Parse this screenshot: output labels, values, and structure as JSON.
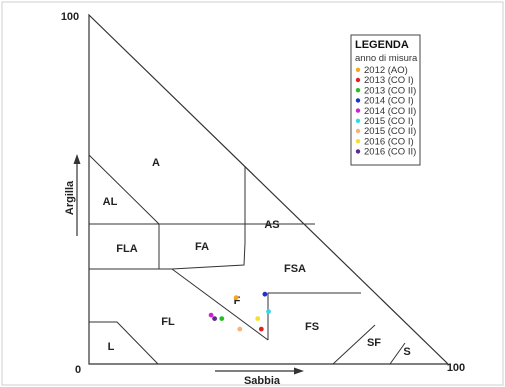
{
  "axes": {
    "y_title": "Argilla",
    "x_title": "Sabbia",
    "origin_label": "0",
    "y_max_label": "100",
    "x_max_label": "100"
  },
  "regions": [
    {
      "id": "A",
      "label": "A"
    },
    {
      "id": "AL",
      "label": "AL"
    },
    {
      "id": "AS",
      "label": "AS"
    },
    {
      "id": "FLA",
      "label": "FLA"
    },
    {
      "id": "FA",
      "label": "FA"
    },
    {
      "id": "FSA",
      "label": "FSA"
    },
    {
      "id": "F",
      "label": "F"
    },
    {
      "id": "FL",
      "label": "FL"
    },
    {
      "id": "FS",
      "label": "FS"
    },
    {
      "id": "L",
      "label": "L"
    },
    {
      "id": "SF",
      "label": "SF"
    },
    {
      "id": "S",
      "label": "S"
    }
  ],
  "legend": {
    "title": "LEGENDA",
    "subtitle": "anno di misura",
    "entries": [
      {
        "label": "2012 (AO)",
        "color": "#f5a623"
      },
      {
        "label": "2013 (CO I)",
        "color": "#e02020"
      },
      {
        "label": "2013 (CO II)",
        "color": "#22c022"
      },
      {
        "label": "2014 (CO I)",
        "color": "#1f2fd0"
      },
      {
        "label": "2014 (CO II)",
        "color": "#d020d0"
      },
      {
        "label": "2015 (CO I)",
        "color": "#30d8e8"
      },
      {
        "label": "2015 (CO II)",
        "color": "#f5b27a"
      },
      {
        "label": "2016 (CO I)",
        "color": "#f5e030"
      },
      {
        "label": "2016 (CO II)",
        "color": "#5a2a8a"
      }
    ]
  },
  "measurements": [
    {
      "entry": 0,
      "sabbia": 41,
      "argilla": 19
    },
    {
      "entry": 1,
      "sabbia": 48,
      "argilla": 10
    },
    {
      "entry": 2,
      "sabbia": 37,
      "argilla": 13
    },
    {
      "entry": 3,
      "sabbia": 49,
      "argilla": 20
    },
    {
      "entry": 4,
      "sabbia": 34,
      "argilla": 14
    },
    {
      "entry": 5,
      "sabbia": 50,
      "argilla": 15
    },
    {
      "entry": 6,
      "sabbia": 42,
      "argilla": 10
    },
    {
      "entry": 7,
      "sabbia": 47,
      "argilla": 13
    },
    {
      "entry": 8,
      "sabbia": 35,
      "argilla": 13
    }
  ]
}
